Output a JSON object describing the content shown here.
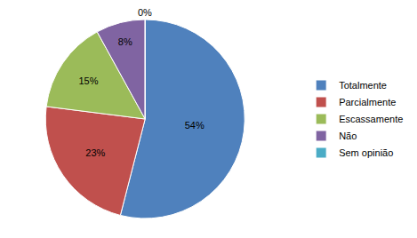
{
  "chart_data": {
    "type": "pie",
    "categories": [
      "Totalmente",
      "Parcialmente",
      "Escassamente",
      "Não",
      "Sem opinião"
    ],
    "values": [
      54,
      23,
      15,
      8,
      0
    ],
    "value_labels": [
      "54%",
      "23%",
      "15%",
      "8%",
      "0%"
    ],
    "colors": [
      "#4f81bd",
      "#c0504d",
      "#9bbb59",
      "#8064a2",
      "#4bacc6"
    ],
    "data_labels": true,
    "legend": "right"
  }
}
